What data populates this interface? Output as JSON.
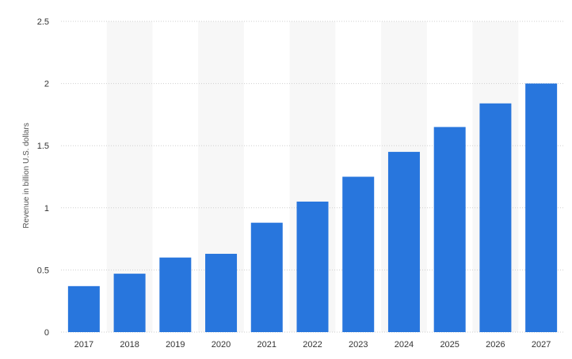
{
  "chart_data": {
    "type": "bar",
    "categories": [
      "2017",
      "2018",
      "2019",
      "2020",
      "2021",
      "2022",
      "2023",
      "2024",
      "2025",
      "2026",
      "2027"
    ],
    "values": [
      0.37,
      0.47,
      0.6,
      0.63,
      0.88,
      1.05,
      1.25,
      1.45,
      1.65,
      1.84,
      2.0
    ],
    "ylabel": "Revenue in billion U.S. dollars",
    "ylim": [
      0,
      2.5
    ],
    "yticks": [
      "0",
      "0.5",
      "1",
      "1.5",
      "2",
      "2.5"
    ],
    "grid": true,
    "grid_style": "dotted horizontal",
    "alternating_column_bands": true,
    "legend": "none",
    "colors": {
      "bar": "#2876dd",
      "band": "#f7f7f7",
      "grid": "#cfcfcf",
      "text": "#333333"
    }
  }
}
